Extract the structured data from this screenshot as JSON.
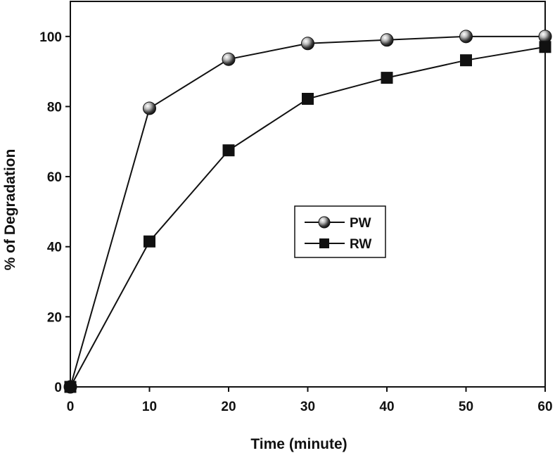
{
  "chart_data": {
    "type": "line",
    "title": "",
    "xlabel": "Time (minute)",
    "ylabel": "% of Degradation",
    "xlim": [
      0,
      60
    ],
    "ylim": [
      0,
      110
    ],
    "xticks": [
      0,
      10,
      20,
      30,
      40,
      50,
      60
    ],
    "yticks": [
      0,
      20,
      40,
      60,
      80,
      100
    ],
    "x": [
      0,
      10,
      20,
      30,
      40,
      50,
      60
    ],
    "series": [
      {
        "name": "PW",
        "marker": "circle",
        "values": [
          0,
          79.5,
          93.5,
          98,
          99,
          100,
          100
        ]
      },
      {
        "name": "RW",
        "marker": "square",
        "values": [
          0,
          41.5,
          67.5,
          82.2,
          88.2,
          93.2,
          97
        ]
      }
    ],
    "legend_position": "center"
  }
}
